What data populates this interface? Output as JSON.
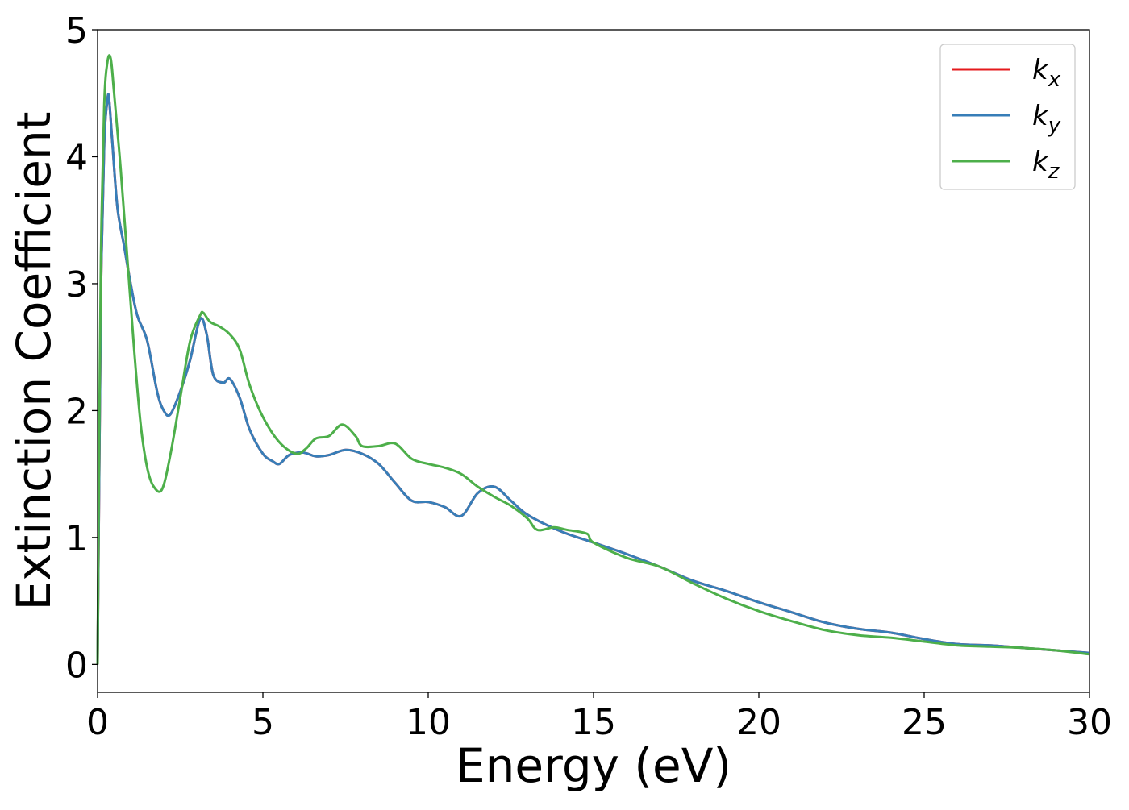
{
  "chart_data": {
    "type": "line",
    "title": "",
    "xlabel": "Energy (eV)",
    "ylabel": "Extinction Coefficient",
    "xlim": [
      0,
      30
    ],
    "ylim": [
      -0.22,
      5.0
    ],
    "xticks": [
      0,
      5,
      10,
      15,
      20,
      25,
      30
    ],
    "yticks": [
      0,
      1,
      2,
      3,
      4,
      5
    ],
    "grid": false,
    "legend_position": "top-right",
    "series": [
      {
        "name": "k_x",
        "label_main": "k",
        "label_sub": "x",
        "color": "#e41a1c",
        "x": [
          0,
          0.05,
          0.1,
          0.2,
          0.3,
          0.35,
          0.45,
          0.6,
          0.8,
          1.0,
          1.2,
          1.5,
          1.8,
          2.0,
          2.2,
          2.5,
          2.8,
          3.1,
          3.3,
          3.5,
          3.8,
          4.0,
          4.3,
          4.6,
          5.0,
          5.3,
          5.5,
          5.8,
          6.2,
          6.6,
          7.0,
          7.5,
          8.0,
          8.5,
          9.0,
          9.5,
          10.0,
          10.5,
          11.0,
          11.5,
          12.0,
          12.5,
          13.0,
          14.0,
          15.0,
          16.0,
          17.0,
          18.0,
          19.0,
          20.0,
          21.0,
          22.0,
          23.0,
          24.0,
          25.0,
          26.0,
          27.0,
          28.0,
          29.0,
          30.0
        ],
        "y": [
          0.0,
          1.5,
          2.9,
          4.1,
          4.45,
          4.45,
          4.1,
          3.6,
          3.3,
          3.0,
          2.75,
          2.55,
          2.15,
          2.0,
          1.97,
          2.15,
          2.4,
          2.72,
          2.6,
          2.28,
          2.22,
          2.25,
          2.1,
          1.85,
          1.66,
          1.6,
          1.58,
          1.65,
          1.67,
          1.64,
          1.65,
          1.69,
          1.66,
          1.58,
          1.43,
          1.29,
          1.28,
          1.24,
          1.17,
          1.35,
          1.4,
          1.29,
          1.18,
          1.05,
          0.96,
          0.87,
          0.77,
          0.66,
          0.58,
          0.49,
          0.41,
          0.33,
          0.28,
          0.25,
          0.2,
          0.16,
          0.15,
          0.13,
          0.11,
          0.09
        ]
      },
      {
        "name": "k_y",
        "label_main": "k",
        "label_sub": "y",
        "color": "#377eb8",
        "x": [
          0,
          0.05,
          0.1,
          0.2,
          0.3,
          0.35,
          0.45,
          0.6,
          0.8,
          1.0,
          1.2,
          1.5,
          1.8,
          2.0,
          2.2,
          2.5,
          2.8,
          3.1,
          3.3,
          3.5,
          3.8,
          4.0,
          4.3,
          4.6,
          5.0,
          5.3,
          5.5,
          5.8,
          6.2,
          6.6,
          7.0,
          7.5,
          8.0,
          8.5,
          9.0,
          9.5,
          10.0,
          10.5,
          11.0,
          11.5,
          12.0,
          12.5,
          13.0,
          14.0,
          15.0,
          16.0,
          17.0,
          18.0,
          19.0,
          20.0,
          21.0,
          22.0,
          23.0,
          24.0,
          25.0,
          26.0,
          27.0,
          28.0,
          29.0,
          30.0
        ],
        "y": [
          0.0,
          1.5,
          2.9,
          4.1,
          4.45,
          4.45,
          4.1,
          3.6,
          3.3,
          3.0,
          2.75,
          2.55,
          2.15,
          2.0,
          1.97,
          2.15,
          2.4,
          2.72,
          2.6,
          2.28,
          2.22,
          2.25,
          2.1,
          1.85,
          1.66,
          1.6,
          1.58,
          1.65,
          1.67,
          1.64,
          1.65,
          1.69,
          1.66,
          1.58,
          1.43,
          1.29,
          1.28,
          1.24,
          1.17,
          1.35,
          1.4,
          1.29,
          1.18,
          1.05,
          0.96,
          0.87,
          0.77,
          0.66,
          0.58,
          0.49,
          0.41,
          0.33,
          0.28,
          0.25,
          0.2,
          0.16,
          0.15,
          0.13,
          0.11,
          0.09
        ]
      },
      {
        "name": "k_z",
        "label_main": "k",
        "label_sub": "z",
        "color": "#4daf4a",
        "x": [
          0,
          0.05,
          0.1,
          0.2,
          0.3,
          0.4,
          0.5,
          0.7,
          0.9,
          1.1,
          1.3,
          1.5,
          1.7,
          1.95,
          2.2,
          2.5,
          2.8,
          3.1,
          3.2,
          3.4,
          3.7,
          4.0,
          4.3,
          4.6,
          5.0,
          5.5,
          6.0,
          6.3,
          6.6,
          7.0,
          7.4,
          7.8,
          8.0,
          8.5,
          9.0,
          9.5,
          10.0,
          10.5,
          11.0,
          11.5,
          12.0,
          12.5,
          13.0,
          13.3,
          13.8,
          14.2,
          14.8,
          15.0,
          16.0,
          17.0,
          18.0,
          19.0,
          20.0,
          21.0,
          22.0,
          23.0,
          24.0,
          25.0,
          26.0,
          27.0,
          28.0,
          29.0,
          30.0
        ],
        "y": [
          0.0,
          1.8,
          3.2,
          4.4,
          4.75,
          4.77,
          4.5,
          3.9,
          3.2,
          2.5,
          1.9,
          1.55,
          1.4,
          1.38,
          1.65,
          2.1,
          2.55,
          2.75,
          2.77,
          2.7,
          2.66,
          2.6,
          2.48,
          2.2,
          1.95,
          1.75,
          1.66,
          1.7,
          1.78,
          1.8,
          1.89,
          1.8,
          1.72,
          1.72,
          1.74,
          1.62,
          1.58,
          1.55,
          1.5,
          1.4,
          1.32,
          1.25,
          1.15,
          1.06,
          1.08,
          1.06,
          1.03,
          0.96,
          0.84,
          0.77,
          0.64,
          0.52,
          0.42,
          0.34,
          0.27,
          0.23,
          0.21,
          0.18,
          0.15,
          0.14,
          0.13,
          0.11,
          0.08
        ]
      }
    ]
  }
}
